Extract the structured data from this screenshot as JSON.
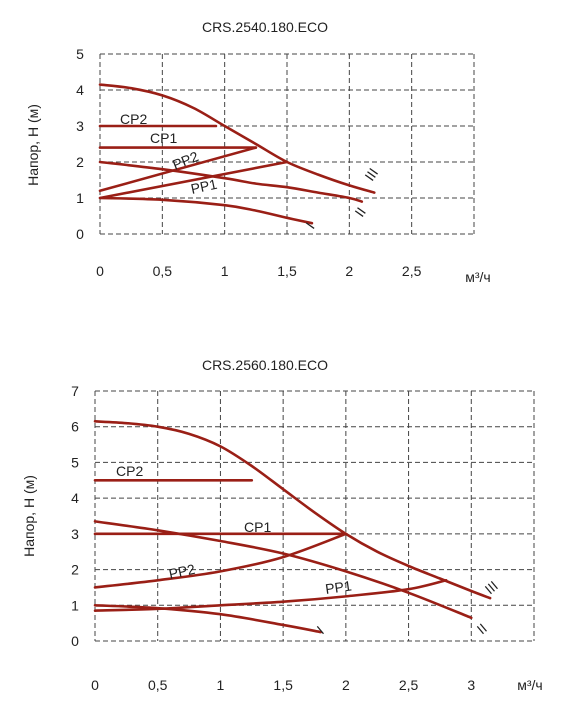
{
  "chart_data": [
    {
      "type": "line",
      "title": "CRS.2540.180.ECO",
      "ylabel": "Напор, Н (м)",
      "xunit": "м³/ч",
      "xlim": [
        0,
        3
      ],
      "ylim": [
        0,
        5
      ],
      "x_ticks": [
        "0",
        "0,5",
        "1",
        "1,5",
        "2",
        "2,5"
      ],
      "y_ticks": [
        "0",
        "1",
        "2",
        "3",
        "4",
        "5"
      ],
      "grid": true,
      "series": [
        {
          "name": "III",
          "x": [
            0,
            0.25,
            0.5,
            0.75,
            1.0,
            1.25,
            1.5,
            1.75,
            2.0,
            2.2
          ],
          "y": [
            4.15,
            4.05,
            3.85,
            3.5,
            3.0,
            2.5,
            2.0,
            1.65,
            1.35,
            1.15
          ]
        },
        {
          "name": "II",
          "x": [
            0,
            0.5,
            1.0,
            1.25,
            1.5,
            1.75,
            2.0,
            2.1
          ],
          "y": [
            2.0,
            1.8,
            1.55,
            1.4,
            1.3,
            1.15,
            1.0,
            0.9
          ]
        },
        {
          "name": "I",
          "x": [
            0,
            0.5,
            1.0,
            1.25,
            1.5,
            1.7
          ],
          "y": [
            1.0,
            0.95,
            0.8,
            0.65,
            0.45,
            0.3
          ]
        },
        {
          "name": "CP2",
          "x": [
            0,
            0.93
          ],
          "y": [
            3.0,
            3.0
          ]
        },
        {
          "name": "CP1",
          "x": [
            0,
            1.25
          ],
          "y": [
            2.4,
            2.4
          ]
        },
        {
          "name": "PP2",
          "x": [
            0,
            1.25
          ],
          "y": [
            1.2,
            2.4
          ]
        },
        {
          "name": "PP1",
          "x": [
            0,
            1.5
          ],
          "y": [
            1.0,
            2.0
          ]
        }
      ],
      "labels": {
        "cp2": "CP2",
        "cp1": "CP1",
        "pp2": "PP2",
        "pp1": "PP1",
        "iii": "III",
        "ii": "II",
        "i": "I"
      }
    },
    {
      "type": "line",
      "title": "CRS.2560.180.ECO",
      "ylabel": "Напор, Н (м)",
      "xunit": "м³/ч",
      "xlim": [
        0,
        3.5
      ],
      "ylim": [
        0,
        7
      ],
      "x_ticks": [
        "0",
        "0,5",
        "1",
        "1,5",
        "2",
        "2,5",
        "3"
      ],
      "y_ticks": [
        "0",
        "1",
        "2",
        "3",
        "4",
        "5",
        "6",
        "7"
      ],
      "grid": true,
      "series": [
        {
          "name": "III",
          "x": [
            0,
            0.25,
            0.5,
            0.75,
            1.0,
            1.25,
            1.5,
            1.75,
            2.0,
            2.25,
            2.5,
            2.75,
            3.0,
            3.15
          ],
          "y": [
            6.15,
            6.1,
            6.0,
            5.8,
            5.45,
            4.9,
            4.25,
            3.6,
            3.0,
            2.5,
            2.1,
            1.75,
            1.4,
            1.2
          ]
        },
        {
          "name": "II",
          "x": [
            0,
            0.5,
            1.0,
            1.5,
            2.0,
            2.5,
            3.0
          ],
          "y": [
            3.35,
            3.1,
            2.8,
            2.45,
            1.95,
            1.35,
            0.65
          ]
        },
        {
          "name": "I",
          "x": [
            0,
            0.5,
            1.0,
            1.5,
            1.8
          ],
          "y": [
            1.0,
            0.92,
            0.75,
            0.45,
            0.25
          ]
        },
        {
          "name": "CP2",
          "x": [
            0,
            1.25
          ],
          "y": [
            4.5,
            4.5
          ]
        },
        {
          "name": "CP1",
          "x": [
            0,
            2.0
          ],
          "y": [
            3.0,
            3.0
          ]
        },
        {
          "name": "PP2",
          "x": [
            0,
            0.5,
            1.0,
            1.5,
            2.0
          ],
          "y": [
            1.5,
            1.7,
            1.95,
            2.35,
            3.0
          ]
        },
        {
          "name": "PP1",
          "x": [
            0,
            0.5,
            1.0,
            1.5,
            2.0,
            2.5,
            2.8
          ],
          "y": [
            0.85,
            0.9,
            1.0,
            1.1,
            1.25,
            1.45,
            1.7
          ]
        }
      ],
      "labels": {
        "cp2": "CP2",
        "cp1": "CP1",
        "pp2": "PP2",
        "pp1": "PP1",
        "iii": "III",
        "ii": "II",
        "i": "I"
      }
    }
  ]
}
